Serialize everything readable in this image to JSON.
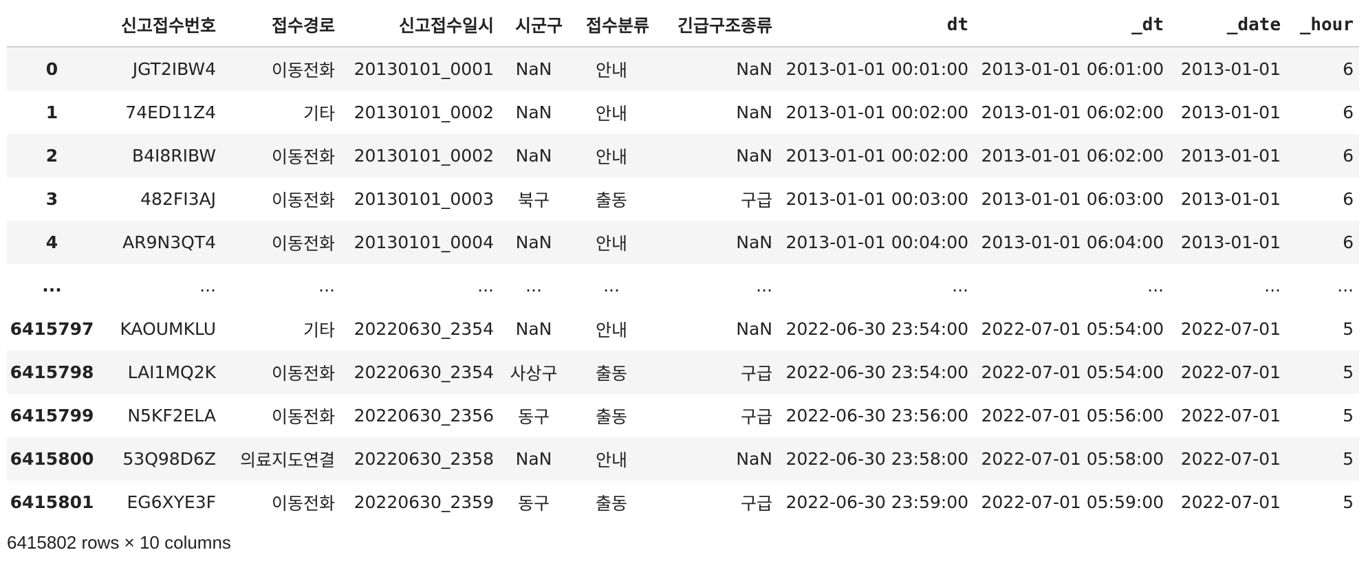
{
  "table": {
    "index_header": "",
    "columns": [
      {
        "label": "신고접수번호",
        "mono": false
      },
      {
        "label": "접수경로",
        "mono": false
      },
      {
        "label": "신고접수일시",
        "mono": false
      },
      {
        "label": "시군구",
        "mono": false
      },
      {
        "label": "접수분류",
        "mono": false
      },
      {
        "label": "긴급구조종류",
        "mono": false
      },
      {
        "label": "dt",
        "mono": true
      },
      {
        "label": "_dt",
        "mono": true
      },
      {
        "label": "_date",
        "mono": true
      },
      {
        "label": "_hour",
        "mono": true
      }
    ],
    "rows": [
      {
        "index": "0",
        "cells": [
          "JGT2IBW4",
          "이동전화",
          "20130101_0001",
          "NaN",
          "안내",
          "NaN",
          "2013-01-01 00:01:00",
          "2013-01-01 06:01:00",
          "2013-01-01",
          "6"
        ]
      },
      {
        "index": "1",
        "cells": [
          "74ED11Z4",
          "기타",
          "20130101_0002",
          "NaN",
          "안내",
          "NaN",
          "2013-01-01 00:02:00",
          "2013-01-01 06:02:00",
          "2013-01-01",
          "6"
        ]
      },
      {
        "index": "2",
        "cells": [
          "B4I8RIBW",
          "이동전화",
          "20130101_0002",
          "NaN",
          "안내",
          "NaN",
          "2013-01-01 00:02:00",
          "2013-01-01 06:02:00",
          "2013-01-01",
          "6"
        ]
      },
      {
        "index": "3",
        "cells": [
          "482FI3AJ",
          "이동전화",
          "20130101_0003",
          "북구",
          "출동",
          "구급",
          "2013-01-01 00:03:00",
          "2013-01-01 06:03:00",
          "2013-01-01",
          "6"
        ]
      },
      {
        "index": "4",
        "cells": [
          "AR9N3QT4",
          "이동전화",
          "20130101_0004",
          "NaN",
          "안내",
          "NaN",
          "2013-01-01 00:04:00",
          "2013-01-01 06:04:00",
          "2013-01-01",
          "6"
        ]
      },
      {
        "index": "...",
        "cells": [
          "...",
          "...",
          "...",
          "...",
          "...",
          "...",
          "...",
          "...",
          "...",
          "..."
        ],
        "ellipsis": true
      },
      {
        "index": "6415797",
        "cells": [
          "KAOUMKLU",
          "기타",
          "20220630_2354",
          "NaN",
          "안내",
          "NaN",
          "2022-06-30 23:54:00",
          "2022-07-01 05:54:00",
          "2022-07-01",
          "5"
        ]
      },
      {
        "index": "6415798",
        "cells": [
          "LAI1MQ2K",
          "이동전화",
          "20220630_2354",
          "사상구",
          "출동",
          "구급",
          "2022-06-30 23:54:00",
          "2022-07-01 05:54:00",
          "2022-07-01",
          "5"
        ]
      },
      {
        "index": "6415799",
        "cells": [
          "N5KF2ELA",
          "이동전화",
          "20220630_2356",
          "동구",
          "출동",
          "구급",
          "2022-06-30 23:56:00",
          "2022-07-01 05:56:00",
          "2022-07-01",
          "5"
        ]
      },
      {
        "index": "6415800",
        "cells": [
          "53Q98D6Z",
          "의료지도연결",
          "20220630_2358",
          "NaN",
          "안내",
          "NaN",
          "2022-06-30 23:58:00",
          "2022-07-01 05:58:00",
          "2022-07-01",
          "5"
        ]
      },
      {
        "index": "6415801",
        "cells": [
          "EG6XYE3F",
          "이동전화",
          "20220630_2359",
          "동구",
          "출동",
          "구급",
          "2022-06-30 23:59:00",
          "2022-07-01 05:59:00",
          "2022-07-01",
          "5"
        ]
      }
    ],
    "shape_text": "6415802 rows × 10 columns"
  },
  "colors": {
    "stripe": "#f5f5f5",
    "header_border": "#cfcfcf",
    "text": "#222222"
  }
}
